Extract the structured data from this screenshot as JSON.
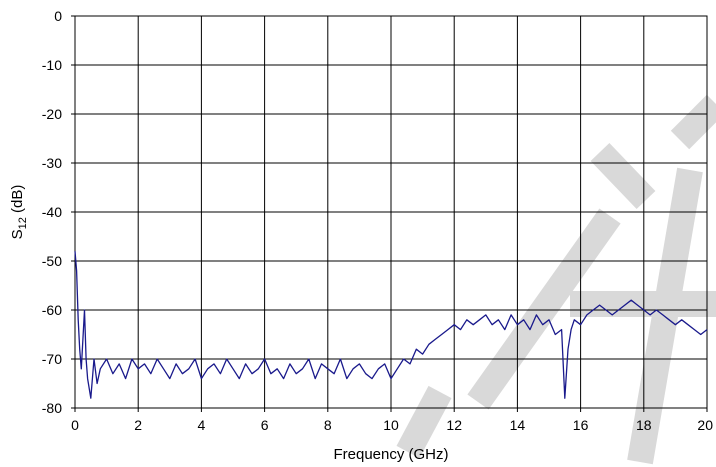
{
  "chart_data": {
    "type": "line",
    "title": "",
    "xlabel": "Frequency (GHz)",
    "ylabel": {
      "main": "S",
      "sub": "12",
      "unit": " (dB)"
    },
    "xlim": [
      0,
      20
    ],
    "ylim": [
      -80,
      0
    ],
    "xticks": [
      0,
      2,
      4,
      6,
      8,
      10,
      12,
      14,
      16,
      18,
      20
    ],
    "yticks": [
      0,
      -10,
      -20,
      -30,
      -40,
      -50,
      -60,
      -70,
      -80
    ],
    "x_tick_labels": [
      "0",
      "2",
      "4",
      "6",
      "8",
      "10",
      "12",
      "14",
      "16",
      "18",
      "20"
    ],
    "y_tick_labels": [
      "0",
      "-10",
      "-20",
      "-30",
      "-40",
      "-50",
      "-60",
      "-70",
      "-80"
    ],
    "grid": true,
    "series": [
      {
        "color": "#1a1a8c",
        "x": [
          0.0,
          0.05,
          0.1,
          0.15,
          0.2,
          0.25,
          0.3,
          0.35,
          0.4,
          0.5,
          0.6,
          0.7,
          0.8,
          1.0,
          1.2,
          1.4,
          1.6,
          1.8,
          2.0,
          2.2,
          2.4,
          2.6,
          2.8,
          3.0,
          3.2,
          3.4,
          3.6,
          3.8,
          4.0,
          4.2,
          4.4,
          4.6,
          4.8,
          5.0,
          5.2,
          5.4,
          5.6,
          5.8,
          6.0,
          6.2,
          6.4,
          6.6,
          6.8,
          7.0,
          7.2,
          7.4,
          7.6,
          7.8,
          8.0,
          8.2,
          8.4,
          8.6,
          8.8,
          9.0,
          9.2,
          9.4,
          9.6,
          9.8,
          10.0,
          10.2,
          10.4,
          10.6,
          10.8,
          11.0,
          11.2,
          11.4,
          11.6,
          11.8,
          12.0,
          12.2,
          12.4,
          12.6,
          12.8,
          13.0,
          13.2,
          13.4,
          13.6,
          13.8,
          14.0,
          14.2,
          14.4,
          14.6,
          14.8,
          15.0,
          15.2,
          15.4,
          15.5,
          15.6,
          15.7,
          15.8,
          16.0,
          16.2,
          16.4,
          16.6,
          16.8,
          17.0,
          17.2,
          17.4,
          17.6,
          17.8,
          18.0,
          18.2,
          18.4,
          18.6,
          18.8,
          19.0,
          19.2,
          19.4,
          19.6,
          19.8,
          20.0
        ],
        "y": [
          -48,
          -52,
          -62,
          -68,
          -72,
          -66,
          -60,
          -70,
          -74,
          -78,
          -70,
          -75,
          -72,
          -70,
          -73,
          -71,
          -74,
          -70,
          -72,
          -71,
          -73,
          -70,
          -72,
          -74,
          -71,
          -73,
          -72,
          -70,
          -74,
          -72,
          -71,
          -73,
          -70,
          -72,
          -74,
          -71,
          -73,
          -72,
          -70,
          -73,
          -72,
          -74,
          -71,
          -73,
          -72,
          -70,
          -74,
          -71,
          -72,
          -73,
          -70,
          -74,
          -72,
          -71,
          -73,
          -74,
          -72,
          -71,
          -74,
          -72,
          -70,
          -71,
          -68,
          -69,
          -67,
          -66,
          -65,
          -64,
          -63,
          -64,
          -62,
          -63,
          -62,
          -61,
          -63,
          -62,
          -64,
          -61,
          -63,
          -62,
          -64,
          -61,
          -63,
          -62,
          -65,
          -64,
          -78,
          -68,
          -64,
          -62,
          -63,
          -61,
          -60,
          -59,
          -60,
          -61,
          -60,
          -59,
          -58,
          -59,
          -60,
          -61,
          -60,
          -61,
          -62,
          -63,
          -62,
          -63,
          -64,
          -65,
          -64
        ]
      }
    ]
  }
}
